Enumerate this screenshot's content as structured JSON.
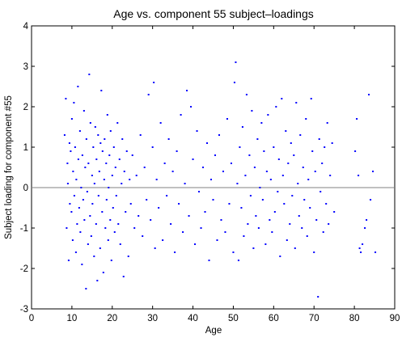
{
  "chart_data": {
    "type": "scatter",
    "title": "Age vs. component 55 subject–loadings",
    "xlabel": "Age",
    "ylabel": "Subject loading for component #55",
    "xlim": [
      0,
      90
    ],
    "ylim": [
      -3,
      4
    ],
    "xticks": [
      0,
      10,
      20,
      30,
      40,
      50,
      60,
      70,
      80,
      90
    ],
    "yticks": [
      -3,
      -2,
      -1,
      0,
      1,
      2,
      3,
      4
    ],
    "reference_line_y": 0,
    "grid": false,
    "legend": "none",
    "marker_color": "#0000ff",
    "reference_line_color": "#808080",
    "points": [
      [
        8.2,
        1.3
      ],
      [
        8.5,
        2.2
      ],
      [
        8.7,
        -1.0
      ],
      [
        8.9,
        0.6
      ],
      [
        9.0,
        0.1
      ],
      [
        9.2,
        -1.8
      ],
      [
        9.4,
        1.1
      ],
      [
        9.5,
        -0.4
      ],
      [
        9.7,
        0.9
      ],
      [
        9.9,
        -0.6
      ],
      [
        10.0,
        1.7
      ],
      [
        10.2,
        -1.3
      ],
      [
        10.3,
        0.4
      ],
      [
        10.5,
        2.1
      ],
      [
        10.6,
        -0.2
      ],
      [
        10.8,
        1.0
      ],
      [
        11.0,
        -1.6
      ],
      [
        11.1,
        0.2
      ],
      [
        11.3,
        -0.9
      ],
      [
        11.5,
        2.5
      ],
      [
        11.6,
        0.7
      ],
      [
        11.8,
        -0.5
      ],
      [
        12.0,
        1.4
      ],
      [
        12.1,
        -1.1
      ],
      [
        12.3,
        0.0
      ],
      [
        12.5,
        -1.9
      ],
      [
        12.6,
        0.8
      ],
      [
        12.8,
        -0.3
      ],
      [
        13.0,
        1.9
      ],
      [
        13.1,
        -0.8
      ],
      [
        13.3,
        0.5
      ],
      [
        13.5,
        -2.5
      ],
      [
        13.6,
        1.2
      ],
      [
        13.8,
        -0.1
      ],
      [
        14.0,
        -1.4
      ],
      [
        14.1,
        0.6
      ],
      [
        14.3,
        2.8
      ],
      [
        14.5,
        -0.7
      ],
      [
        14.6,
        1.6
      ],
      [
        14.8,
        -1.2
      ],
      [
        15.0,
        0.3
      ],
      [
        15.1,
        -0.4
      ],
      [
        15.3,
        1.0
      ],
      [
        15.5,
        -1.7
      ],
      [
        15.6,
        0.1
      ],
      [
        15.8,
        1.5
      ],
      [
        16.0,
        -0.9
      ],
      [
        16.1,
        0.7
      ],
      [
        16.3,
        -2.3
      ],
      [
        16.5,
        1.3
      ],
      [
        16.6,
        -0.2
      ],
      [
        16.8,
        0.4
      ],
      [
        17.0,
        -1.5
      ],
      [
        17.1,
        1.1
      ],
      [
        17.3,
        2.4
      ],
      [
        17.5,
        -0.6
      ],
      [
        17.6,
        0.9
      ],
      [
        17.8,
        -2.1
      ],
      [
        18.0,
        0.2
      ],
      [
        18.1,
        1.2
      ],
      [
        18.3,
        -1.0
      ],
      [
        18.5,
        0.6
      ],
      [
        18.6,
        -0.3
      ],
      [
        18.8,
        1.8
      ],
      [
        19.0,
        -1.3
      ],
      [
        19.1,
        0.0
      ],
      [
        19.3,
        0.8
      ],
      [
        19.5,
        -0.8
      ],
      [
        19.6,
        1.4
      ],
      [
        19.8,
        -1.8
      ],
      [
        20.0,
        0.3
      ],
      [
        20.2,
        -0.5
      ],
      [
        20.4,
        1.0
      ],
      [
        20.6,
        -1.1
      ],
      [
        20.8,
        0.5
      ],
      [
        21.0,
        -0.2
      ],
      [
        21.3,
        1.6
      ],
      [
        21.5,
        -0.9
      ],
      [
        21.8,
        0.7
      ],
      [
        22.0,
        -1.4
      ],
      [
        22.3,
        0.1
      ],
      [
        22.5,
        1.2
      ],
      [
        22.8,
        -2.2
      ],
      [
        23.0,
        0.4
      ],
      [
        23.3,
        -0.6
      ],
      [
        23.6,
        0.9
      ],
      [
        24.0,
        -1.7
      ],
      [
        24.3,
        0.2
      ],
      [
        24.6,
        -0.4
      ],
      [
        25.0,
        0.8
      ],
      [
        25.5,
        -1.0
      ],
      [
        26.0,
        0.3
      ],
      [
        26.5,
        -0.7
      ],
      [
        27.0,
        1.3
      ],
      [
        27.5,
        -1.2
      ],
      [
        28.0,
        0.5
      ],
      [
        28.5,
        -0.3
      ],
      [
        29.0,
        2.3
      ],
      [
        29.5,
        -0.8
      ],
      [
        30.0,
        1.0
      ],
      [
        30.3,
        2.6
      ],
      [
        30.6,
        -1.5
      ],
      [
        31.0,
        0.2
      ],
      [
        31.5,
        -0.5
      ],
      [
        32.0,
        1.6
      ],
      [
        32.5,
        -1.3
      ],
      [
        33.0,
        0.6
      ],
      [
        33.5,
        -0.2
      ],
      [
        34.0,
        1.2
      ],
      [
        34.5,
        -0.9
      ],
      [
        35.0,
        0.4
      ],
      [
        35.5,
        -1.6
      ],
      [
        36.0,
        0.9
      ],
      [
        36.5,
        -0.4
      ],
      [
        37.0,
        1.8
      ],
      [
        37.5,
        -1.1
      ],
      [
        38.0,
        0.1
      ],
      [
        38.5,
        2.4
      ],
      [
        39.0,
        -0.7
      ],
      [
        39.5,
        2.0
      ],
      [
        40.0,
        0.7
      ],
      [
        40.5,
        -1.4
      ],
      [
        41.0,
        1.4
      ],
      [
        41.5,
        -0.1
      ],
      [
        42.0,
        -1.0
      ],
      [
        42.5,
        0.5
      ],
      [
        43.0,
        -0.6
      ],
      [
        43.5,
        1.1
      ],
      [
        44.0,
        -1.8
      ],
      [
        44.5,
        0.2
      ],
      [
        45.0,
        -0.3
      ],
      [
        45.5,
        0.8
      ],
      [
        46.0,
        -1.3
      ],
      [
        46.5,
        1.3
      ],
      [
        47.0,
        -0.8
      ],
      [
        47.5,
        0.4
      ],
      [
        48.0,
        -1.1
      ],
      [
        48.5,
        1.7
      ],
      [
        49.0,
        -0.4
      ],
      [
        49.5,
        0.6
      ],
      [
        50.0,
        -1.6
      ],
      [
        50.3,
        2.6
      ],
      [
        50.6,
        3.1
      ],
      [
        51.0,
        0.1
      ],
      [
        51.3,
        -1.8
      ],
      [
        51.6,
        1.0
      ],
      [
        52.0,
        -0.5
      ],
      [
        52.3,
        1.5
      ],
      [
        52.6,
        -1.2
      ],
      [
        53.0,
        0.3
      ],
      [
        53.3,
        2.3
      ],
      [
        53.6,
        -0.9
      ],
      [
        54.0,
        0.8
      ],
      [
        54.3,
        -0.2
      ],
      [
        54.6,
        1.9
      ],
      [
        55.0,
        -1.5
      ],
      [
        55.3,
        0.5
      ],
      [
        55.6,
        -0.7
      ],
      [
        56.0,
        1.2
      ],
      [
        56.3,
        -1.0
      ],
      [
        56.6,
        0.0
      ],
      [
        57.0,
        1.6
      ],
      [
        57.3,
        -0.3
      ],
      [
        57.6,
        0.9
      ],
      [
        58.0,
        -1.4
      ],
      [
        58.3,
        0.4
      ],
      [
        58.6,
        1.8
      ],
      [
        59.0,
        -0.8
      ],
      [
        59.3,
        0.2
      ],
      [
        59.6,
        -1.1
      ],
      [
        60.0,
        1.0
      ],
      [
        60.3,
        -0.6
      ],
      [
        60.6,
        2.0
      ],
      [
        61.0,
        -0.1
      ],
      [
        61.3,
        0.7
      ],
      [
        61.6,
        -1.7
      ],
      [
        62.0,
        2.2
      ],
      [
        62.3,
        0.3
      ],
      [
        62.6,
        -0.4
      ],
      [
        63.0,
        1.4
      ],
      [
        63.3,
        -1.3
      ],
      [
        63.6,
        0.6
      ],
      [
        64.0,
        -0.9
      ],
      [
        64.3,
        1.1
      ],
      [
        64.6,
        -0.2
      ],
      [
        65.0,
        0.8
      ],
      [
        65.3,
        -1.5
      ],
      [
        65.6,
        2.1
      ],
      [
        66.0,
        0.1
      ],
      [
        66.3,
        -0.7
      ],
      [
        66.6,
        1.3
      ],
      [
        67.0,
        -1.0
      ],
      [
        67.3,
        0.5
      ],
      [
        67.6,
        -0.3
      ],
      [
        68.0,
        1.7
      ],
      [
        68.3,
        -1.2
      ],
      [
        68.6,
        0.2
      ],
      [
        69.0,
        -0.5
      ],
      [
        69.3,
        2.2
      ],
      [
        69.6,
        0.9
      ],
      [
        70.0,
        -1.6
      ],
      [
        70.3,
        0.4
      ],
      [
        70.6,
        -0.8
      ],
      [
        71.0,
        -2.7
      ],
      [
        71.3,
        1.2
      ],
      [
        71.6,
        -0.1
      ],
      [
        72.0,
        0.6
      ],
      [
        72.3,
        -1.1
      ],
      [
        72.6,
        1.0
      ],
      [
        73.0,
        -0.4
      ],
      [
        73.3,
        1.6
      ],
      [
        73.6,
        -0.9
      ],
      [
        74.0,
        0.3
      ],
      [
        74.5,
        1.1
      ],
      [
        75.0,
        -0.6
      ],
      [
        80.2,
        0.9
      ],
      [
        80.6,
        1.7
      ],
      [
        81.0,
        0.3
      ],
      [
        81.3,
        -1.5
      ],
      [
        81.6,
        -1.6
      ],
      [
        82.0,
        -1.4
      ],
      [
        82.6,
        -1.0
      ],
      [
        83.0,
        -0.8
      ],
      [
        83.6,
        2.3
      ],
      [
        84.0,
        -0.3
      ],
      [
        84.6,
        0.4
      ],
      [
        85.2,
        -1.6
      ]
    ]
  }
}
